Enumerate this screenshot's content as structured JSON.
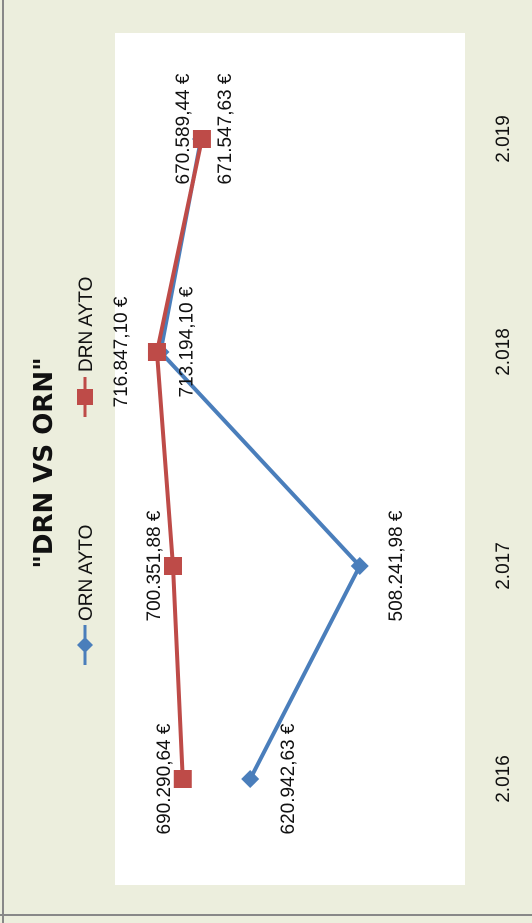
{
  "colors": {
    "background": "#eceedd",
    "plot_area": "#ffffff",
    "series_orn": "#4a7ebb",
    "series_drn": "#be4b48"
  },
  "chart_data": {
    "type": "line",
    "title": "\"DRN VS ORN\"",
    "x": [
      "2.016",
      "2.017",
      "2.018",
      "2.019"
    ],
    "ylim": [
      400000,
      760000
    ],
    "legend_position": "top",
    "grid": false,
    "series": [
      {
        "name": "ORN AYTO",
        "marker": "diamond",
        "values": [
          620942.63,
          508241.98,
          713194.1,
          671547.63
        ],
        "labels": [
          "620.942,63 €",
          "508.241,98 €",
          "713.194,10 €",
          "671.547,63 €"
        ]
      },
      {
        "name": "DRN AYTO",
        "marker": "square",
        "values": [
          690290.64,
          700351.88,
          716847.1,
          670589.44
        ],
        "labels": [
          "690.290,64 €",
          "700.351,88 €",
          "716.847,10 €",
          "670.589,44 €"
        ]
      }
    ]
  }
}
